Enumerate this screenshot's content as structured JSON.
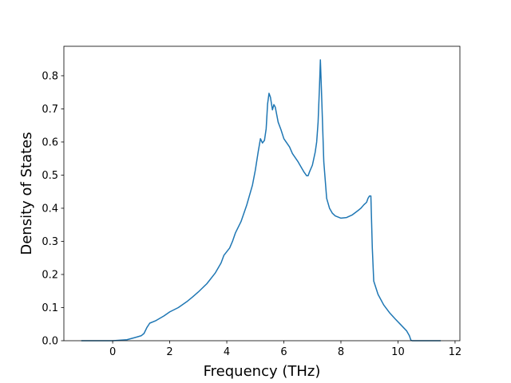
{
  "chart_data": {
    "type": "line",
    "xlabel": "Frequency (THz)",
    "ylabel": "Density of States",
    "color": "#1f77b4",
    "xlim": [
      -1.71,
      12.17
    ],
    "ylim": [
      0,
      0.889
    ],
    "xticks": [
      0,
      2,
      4,
      6,
      8,
      10,
      12
    ],
    "yticks": [
      {
        "value": 0,
        "label": "0.0"
      },
      0.1,
      0.2,
      0.3,
      0.4,
      0.5,
      0.6,
      0.7,
      0.8
    ],
    "x": [
      -1.1,
      0,
      0.5,
      0.8,
      1.0,
      1.1,
      1.2,
      1.3,
      1.5,
      1.8,
      2.0,
      2.3,
      2.6,
      2.8,
      3.0,
      3.3,
      3.6,
      3.8,
      3.9,
      4.1,
      4.2,
      4.3,
      4.5,
      4.7,
      4.9,
      5.0,
      5.1,
      5.18,
      5.25,
      5.32,
      5.38,
      5.43,
      5.48,
      5.53,
      5.6,
      5.65,
      5.7,
      5.8,
      5.9,
      6.0,
      6.2,
      6.3,
      6.5,
      6.6,
      6.7,
      6.8,
      6.85,
      6.9,
      7.0,
      7.1,
      7.15,
      7.2,
      7.25,
      7.28,
      7.32,
      7.4,
      7.5,
      7.6,
      7.7,
      7.8,
      8.0,
      8.2,
      8.4,
      8.6,
      8.7,
      8.8,
      8.9,
      8.95,
      9.0,
      9.05,
      9.1,
      9.15,
      9.3,
      9.5,
      9.7,
      9.9,
      10.1,
      10.3,
      10.4,
      10.45,
      10.5,
      11.5
    ],
    "values": [
      0,
      0,
      0.003,
      0.01,
      0.015,
      0.022,
      0.04,
      0.053,
      0.06,
      0.075,
      0.087,
      0.1,
      0.118,
      0.132,
      0.147,
      0.172,
      0.205,
      0.235,
      0.258,
      0.28,
      0.3,
      0.325,
      0.36,
      0.41,
      0.47,
      0.515,
      0.57,
      0.61,
      0.597,
      0.605,
      0.64,
      0.715,
      0.747,
      0.735,
      0.697,
      0.713,
      0.705,
      0.66,
      0.637,
      0.61,
      0.585,
      0.565,
      0.54,
      0.525,
      0.51,
      0.498,
      0.498,
      0.51,
      0.53,
      0.57,
      0.6,
      0.66,
      0.77,
      0.848,
      0.75,
      0.54,
      0.43,
      0.4,
      0.385,
      0.377,
      0.37,
      0.372,
      0.38,
      0.393,
      0.4,
      0.41,
      0.418,
      0.43,
      0.437,
      0.437,
      0.28,
      0.18,
      0.14,
      0.108,
      0.085,
      0.066,
      0.048,
      0.03,
      0.015,
      0.002,
      0,
      0
    ]
  }
}
